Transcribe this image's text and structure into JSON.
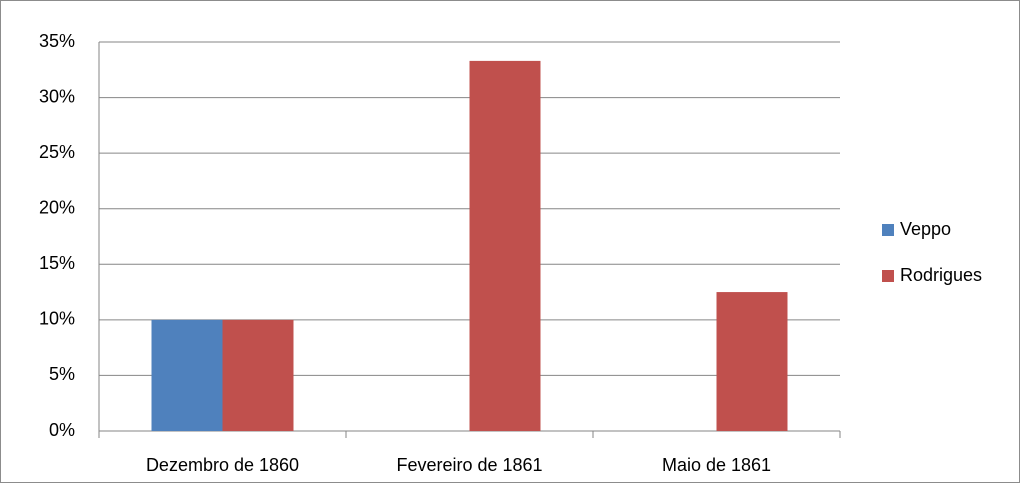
{
  "chart_data": {
    "type": "bar",
    "categories": [
      "Dezembro de 1860",
      "Fevereiro de 1861",
      "Maio de 1861"
    ],
    "series": [
      {
        "name": "Veppo",
        "color": "#4f81bd",
        "values": [
          10,
          0,
          0
        ]
      },
      {
        "name": "Rodrigues",
        "color": "#c0504d",
        "values": [
          10,
          33.3,
          12.5
        ]
      }
    ],
    "ylim": [
      0,
      35
    ],
    "yticks": [
      {
        "value": 0,
        "label": "0%"
      },
      {
        "value": 5,
        "label": "5%"
      },
      {
        "value": 10,
        "label": "10%"
      },
      {
        "value": 15,
        "label": "15%"
      },
      {
        "value": 20,
        "label": "20%"
      },
      {
        "value": 25,
        "label": "25%"
      },
      {
        "value": 30,
        "label": "30%"
      },
      {
        "value": 35,
        "label": "35%"
      }
    ],
    "grid": true,
    "legend": "right"
  }
}
